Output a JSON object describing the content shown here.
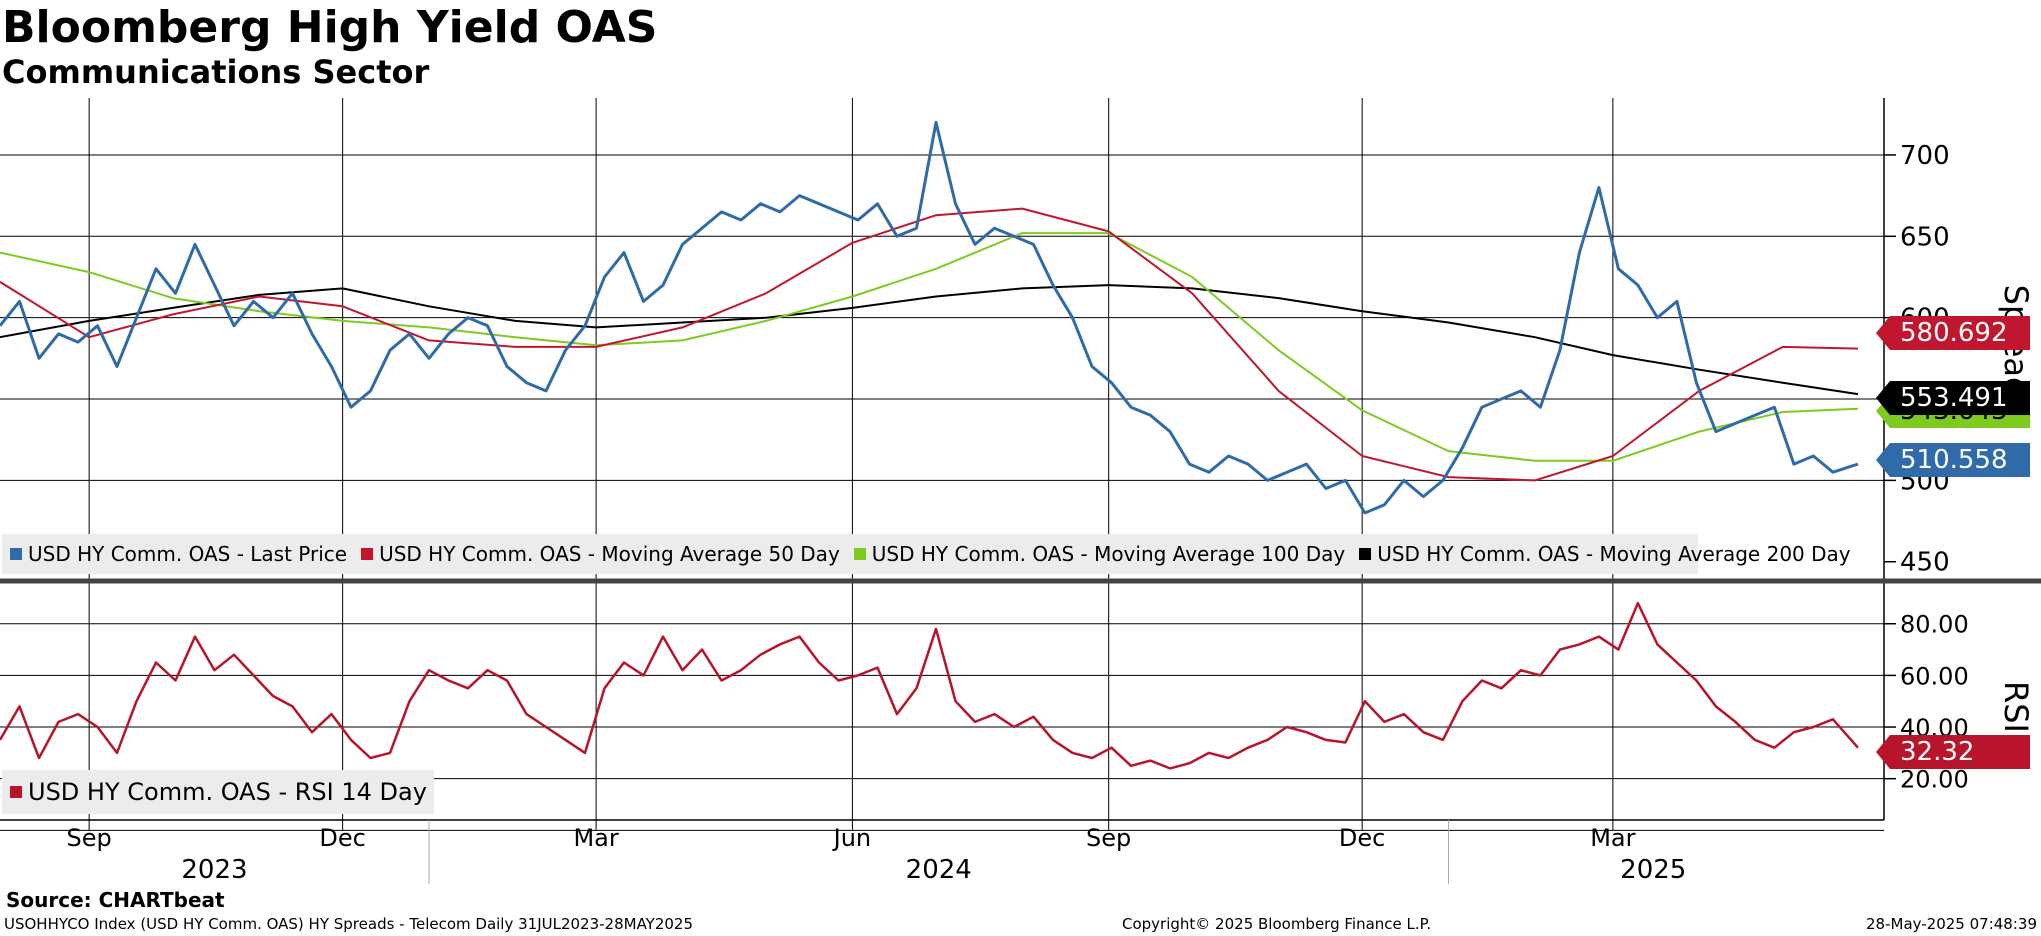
{
  "title": "Bloomberg High Yield OAS",
  "subtitle": "Communications Sector",
  "source": "Source: CHARTbeat",
  "footer": {
    "left": "USOHHYCO Index (USD HY Comm. OAS) HY Spreads - Telecom  Daily 31JUL2023-28MAY2025",
    "center": "Copyright© 2025 Bloomberg Finance L.P.",
    "right": "28-May-2025 07:48:39"
  },
  "colors": {
    "last": "#2f6ba8",
    "ma50": "#c0172f",
    "ma100": "#7ecb20",
    "ma200": "#000000",
    "rsi": "#b8142c"
  },
  "chart_data": [
    {
      "type": "line",
      "ylabel": "Spread",
      "ylim": [
        440,
        735
      ],
      "yticks": [
        "700",
        "650",
        "600",
        "500",
        "450"
      ],
      "x_range": [
        "2023-07-31",
        "2025-05-28"
      ],
      "x_month_ticks": [
        "Sep",
        "Dec",
        "Mar",
        "Jun",
        "Sep",
        "Dec",
        "Mar"
      ],
      "x_year_labels": [
        "2023",
        "2024",
        "2025"
      ],
      "legend": [
        "USD HY Comm. OAS - Last Price",
        "USD HY Comm. OAS - Moving Average 50 Day",
        "USD HY Comm. OAS - Moving Average 100 Day",
        "USD HY Comm. OAS - Moving Average 200 Day"
      ],
      "last_values": {
        "last": "510.558",
        "ma50": "580.692",
        "ma100": "543.643",
        "ma200": "553.491"
      },
      "series": [
        {
          "name": "USD HY Comm. OAS - Last Price",
          "x": [
            "2023-07-31",
            "2023-08-07",
            "2023-08-14",
            "2023-08-21",
            "2023-08-28",
            "2023-09-04",
            "2023-09-11",
            "2023-09-18",
            "2023-09-25",
            "2023-10-02",
            "2023-10-09",
            "2023-10-16",
            "2023-10-23",
            "2023-10-30",
            "2023-11-06",
            "2023-11-13",
            "2023-11-20",
            "2023-11-27",
            "2023-12-04",
            "2023-12-11",
            "2023-12-18",
            "2023-12-25",
            "2024-01-01",
            "2024-01-08",
            "2024-01-15",
            "2024-01-22",
            "2024-01-29",
            "2024-02-05",
            "2024-02-12",
            "2024-02-19",
            "2024-02-26",
            "2024-03-04",
            "2024-03-11",
            "2024-03-18",
            "2024-03-25",
            "2024-04-01",
            "2024-04-08",
            "2024-04-15",
            "2024-04-22",
            "2024-04-29",
            "2024-05-06",
            "2024-05-13",
            "2024-05-20",
            "2024-05-27",
            "2024-06-03",
            "2024-06-10",
            "2024-06-17",
            "2024-06-24",
            "2024-07-01",
            "2024-07-08",
            "2024-07-15",
            "2024-07-22",
            "2024-07-29",
            "2024-08-05",
            "2024-08-12",
            "2024-08-19",
            "2024-08-26",
            "2024-09-02",
            "2024-09-09",
            "2024-09-16",
            "2024-09-23",
            "2024-09-30",
            "2024-10-07",
            "2024-10-14",
            "2024-10-21",
            "2024-10-28",
            "2024-11-04",
            "2024-11-11",
            "2024-11-18",
            "2024-11-25",
            "2024-12-02",
            "2024-12-09",
            "2024-12-16",
            "2024-12-23",
            "2024-12-30",
            "2025-01-06",
            "2025-01-13",
            "2025-01-20",
            "2025-01-27",
            "2025-02-03",
            "2025-02-10",
            "2025-02-17",
            "2025-02-24",
            "2025-03-03",
            "2025-03-10",
            "2025-03-17",
            "2025-03-24",
            "2025-03-31",
            "2025-04-07",
            "2025-04-14",
            "2025-04-21",
            "2025-04-28",
            "2025-05-05",
            "2025-05-12",
            "2025-05-19",
            "2025-05-28"
          ],
          "y": [
            595,
            610,
            575,
            590,
            585,
            595,
            570,
            600,
            630,
            615,
            645,
            620,
            595,
            610,
            600,
            615,
            590,
            570,
            545,
            555,
            580,
            590,
            575,
            590,
            600,
            595,
            570,
            560,
            555,
            580,
            595,
            625,
            640,
            610,
            620,
            645,
            655,
            665,
            660,
            670,
            665,
            675,
            670,
            665,
            660,
            670,
            650,
            655,
            720,
            670,
            645,
            655,
            650,
            645,
            620,
            600,
            570,
            560,
            545,
            540,
            530,
            510,
            505,
            515,
            510,
            500,
            505,
            510,
            495,
            500,
            480,
            485,
            500,
            490,
            500,
            520,
            545,
            550,
            555,
            545,
            580,
            640,
            680,
            630,
            620,
            600,
            610,
            560,
            530,
            535,
            540,
            545,
            510,
            515,
            505,
            510
          ]
        },
        {
          "name": "USD HY Comm. OAS - Moving Average 50 Day",
          "x": [
            "2023-07-31",
            "2023-09-01",
            "2023-10-01",
            "2023-11-01",
            "2023-12-01",
            "2024-01-01",
            "2024-02-01",
            "2024-03-01",
            "2024-04-01",
            "2024-05-01",
            "2024-06-01",
            "2024-07-01",
            "2024-08-01",
            "2024-09-01",
            "2024-10-01",
            "2024-11-01",
            "2024-12-01",
            "2025-01-01",
            "2025-02-01",
            "2025-03-01",
            "2025-04-01",
            "2025-05-01",
            "2025-05-28"
          ],
          "y": [
            622,
            588,
            602,
            613,
            607,
            586,
            582,
            582,
            594,
            615,
            646,
            663,
            667,
            653,
            615,
            555,
            515,
            502,
            500,
            515,
            555,
            582,
            581
          ]
        },
        {
          "name": "USD HY Comm. OAS - Moving Average 100 Day",
          "x": [
            "2023-07-31",
            "2023-09-01",
            "2023-10-01",
            "2023-11-01",
            "2023-12-01",
            "2024-01-01",
            "2024-02-01",
            "2024-03-01",
            "2024-04-01",
            "2024-05-01",
            "2024-06-01",
            "2024-07-01",
            "2024-08-01",
            "2024-09-01",
            "2024-10-01",
            "2024-11-01",
            "2024-12-01",
            "2025-01-01",
            "2025-02-01",
            "2025-03-01",
            "2025-04-01",
            "2025-05-01",
            "2025-05-28"
          ],
          "y": [
            640,
            628,
            612,
            604,
            598,
            594,
            588,
            583,
            586,
            598,
            613,
            630,
            652,
            652,
            625,
            580,
            543,
            518,
            512,
            512,
            530,
            542,
            544
          ]
        },
        {
          "name": "USD HY Comm. OAS - Moving Average 200 Day",
          "x": [
            "2023-07-31",
            "2023-09-01",
            "2023-10-01",
            "2023-11-01",
            "2023-12-01",
            "2024-01-01",
            "2024-02-01",
            "2024-03-01",
            "2024-04-01",
            "2024-05-01",
            "2024-06-01",
            "2024-07-01",
            "2024-08-01",
            "2024-09-01",
            "2024-10-01",
            "2024-11-01",
            "2024-12-01",
            "2025-01-01",
            "2025-02-01",
            "2025-03-01",
            "2025-04-01",
            "2025-05-01",
            "2025-05-28"
          ],
          "y": [
            588,
            598,
            606,
            614,
            618,
            607,
            598,
            594,
            597,
            600,
            606,
            613,
            618,
            620,
            618,
            612,
            604,
            597,
            588,
            577,
            568,
            560,
            553
          ]
        }
      ]
    },
    {
      "type": "line",
      "ylabel": "RSI",
      "ylim": [
        4,
        95
      ],
      "yticks": [
        "80.00",
        "60.00",
        "40.00",
        "20.00"
      ],
      "legend": [
        "USD HY Comm. OAS - RSI 14 Day"
      ],
      "last_value": "32.32",
      "series": [
        {
          "name": "USD HY Comm. OAS - RSI 14 Day",
          "x": [
            "2023-07-31",
            "2023-08-07",
            "2023-08-14",
            "2023-08-21",
            "2023-08-28",
            "2023-09-04",
            "2023-09-11",
            "2023-09-18",
            "2023-09-25",
            "2023-10-02",
            "2023-10-09",
            "2023-10-16",
            "2023-10-23",
            "2023-10-30",
            "2023-11-06",
            "2023-11-13",
            "2023-11-20",
            "2023-11-27",
            "2023-12-04",
            "2023-12-11",
            "2023-12-18",
            "2023-12-25",
            "2024-01-01",
            "2024-01-08",
            "2024-01-15",
            "2024-01-22",
            "2024-01-29",
            "2024-02-05",
            "2024-02-12",
            "2024-02-19",
            "2024-02-26",
            "2024-03-04",
            "2024-03-11",
            "2024-03-18",
            "2024-03-25",
            "2024-04-01",
            "2024-04-08",
            "2024-04-15",
            "2024-04-22",
            "2024-04-29",
            "2024-05-06",
            "2024-05-13",
            "2024-05-20",
            "2024-05-27",
            "2024-06-03",
            "2024-06-10",
            "2024-06-17",
            "2024-06-24",
            "2024-07-01",
            "2024-07-08",
            "2024-07-15",
            "2024-07-22",
            "2024-07-29",
            "2024-08-05",
            "2024-08-12",
            "2024-08-19",
            "2024-08-26",
            "2024-09-02",
            "2024-09-09",
            "2024-09-16",
            "2024-09-23",
            "2024-09-30",
            "2024-10-07",
            "2024-10-14",
            "2024-10-21",
            "2024-10-28",
            "2024-11-04",
            "2024-11-11",
            "2024-11-18",
            "2024-11-25",
            "2024-12-02",
            "2024-12-09",
            "2024-12-16",
            "2024-12-23",
            "2024-12-30",
            "2025-01-06",
            "2025-01-13",
            "2025-01-20",
            "2025-01-27",
            "2025-02-03",
            "2025-02-10",
            "2025-02-17",
            "2025-02-24",
            "2025-03-03",
            "2025-03-10",
            "2025-03-17",
            "2025-03-24",
            "2025-03-31",
            "2025-04-07",
            "2025-04-14",
            "2025-04-21",
            "2025-04-28",
            "2025-05-05",
            "2025-05-12",
            "2025-05-19",
            "2025-05-28"
          ],
          "y": [
            35,
            48,
            28,
            42,
            45,
            40,
            30,
            50,
            65,
            58,
            75,
            62,
            68,
            60,
            52,
            48,
            38,
            45,
            35,
            28,
            30,
            50,
            62,
            58,
            55,
            62,
            58,
            45,
            40,
            35,
            30,
            55,
            65,
            60,
            75,
            62,
            70,
            58,
            62,
            68,
            72,
            75,
            65,
            58,
            60,
            63,
            45,
            55,
            78,
            50,
            42,
            45,
            40,
            44,
            35,
            30,
            28,
            32,
            25,
            27,
            24,
            26,
            30,
            28,
            32,
            35,
            40,
            38,
            35,
            34,
            50,
            42,
            45,
            38,
            35,
            50,
            58,
            55,
            62,
            60,
            70,
            72,
            75,
            70,
            88,
            72,
            65,
            58,
            48,
            42,
            35,
            32,
            38,
            40,
            43,
            32
          ]
        }
      ]
    }
  ]
}
